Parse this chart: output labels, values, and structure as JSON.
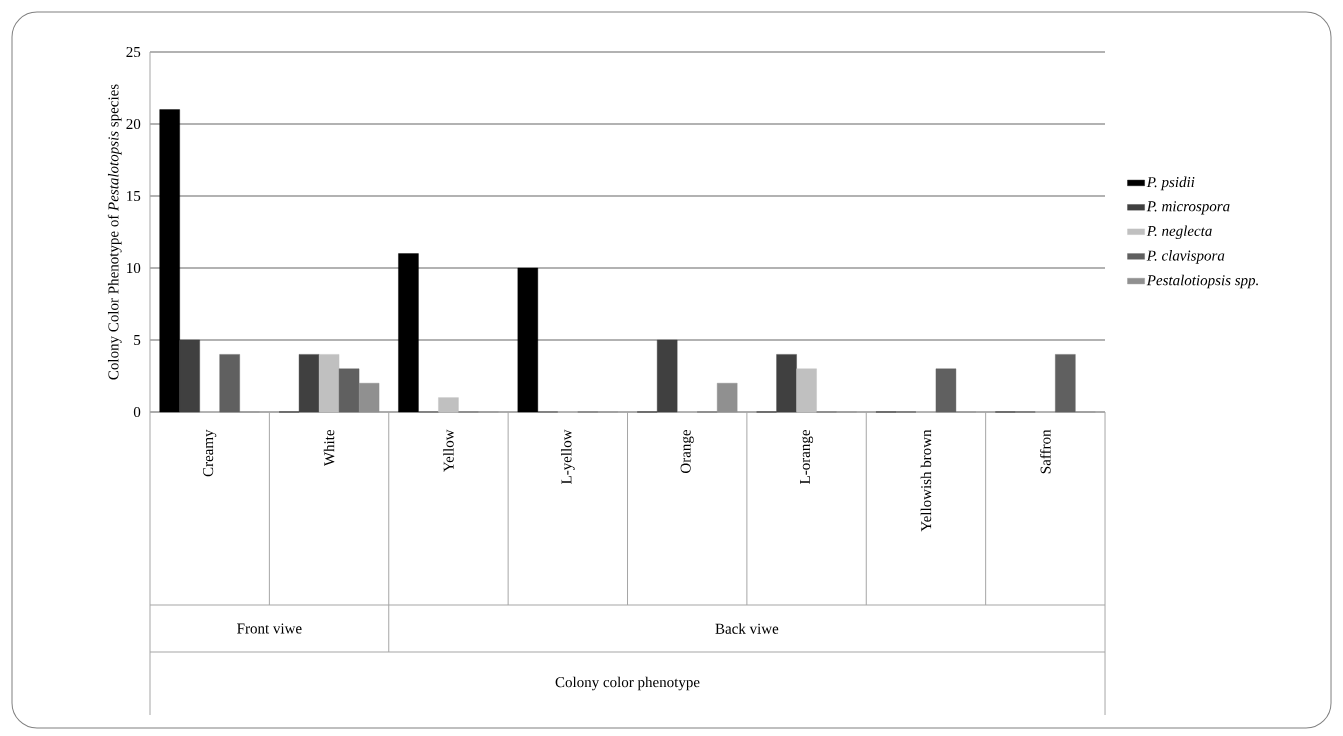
{
  "chart_data": {
    "type": "bar",
    "ylabel": "Colony Color Phenotype of *Pestalotopsis* species",
    "categories": [
      "Creamy",
      "White",
      "Yellow",
      "L-yellow",
      "Orange",
      "L-orange",
      "Yellowish brown",
      "Saffron"
    ],
    "series": [
      {
        "name": "P. psidii",
        "color": "#000000",
        "values": [
          21,
          0,
          11,
          10,
          0,
          0,
          0,
          0
        ]
      },
      {
        "name": "P. microspora",
        "color": "#404040",
        "values": [
          5,
          4,
          0,
          0,
          5,
          4,
          0,
          0
        ]
      },
      {
        "name": "P. neglecta",
        "color": "#c0c0c0",
        "values": [
          0,
          4,
          1,
          0,
          0,
          3,
          0,
          0
        ]
      },
      {
        "name": "P. clavispora",
        "color": "#606060",
        "values": [
          4,
          3,
          0,
          0,
          0,
          0,
          3,
          4
        ]
      },
      {
        "name": "Pestalotiopsis spp.",
        "color": "#909090",
        "values": [
          0,
          2,
          0,
          0,
          2,
          0,
          0,
          0
        ]
      }
    ],
    "annotations": [
      "Front viwe",
      "Back viwe",
      "Colony color phenotype"
    ],
    "ylim": [
      0,
      25
    ],
    "yticks": [
      0,
      5,
      10,
      15,
      20,
      25
    ],
    "grid": "y",
    "legend": "right"
  }
}
